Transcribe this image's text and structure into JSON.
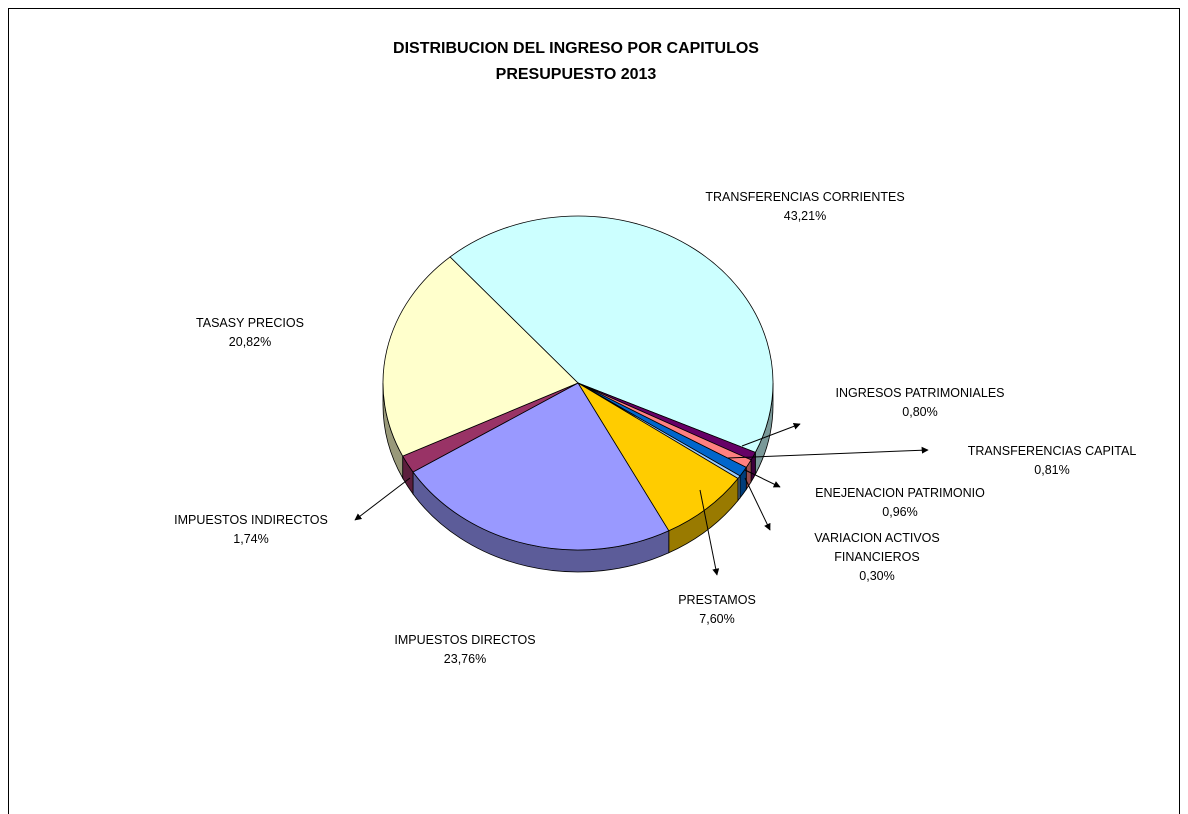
{
  "chart_data": {
    "type": "pie",
    "title": "DISTRIBUCION DEL INGRESO POR CAPITULOS",
    "subtitle": "PRESUPUESTO 2013",
    "categories": [
      "TRANSFERENCIAS CORRIENTES",
      "INGRESOS PATRIMONIALES",
      "TRANSFERENCIAS CAPITAL",
      "ENEJENACION PATRIMONIO",
      "VARIACION ACTIVOS FINANCIEROS",
      "PRESTAMOS",
      "IMPUESTOS DIRECTOS",
      "IMPUESTOS INDIRECTOS",
      "TASASY PRECIOS"
    ],
    "values": [
      43.21,
      0.8,
      0.81,
      0.96,
      0.3,
      7.6,
      23.76,
      1.74,
      20.82
    ],
    "value_labels": [
      "43,21%",
      "0,80%",
      "0,81%",
      "0,96%",
      "0,30%",
      "7,60%",
      "23,76%",
      "1,74%",
      "20,82%"
    ],
    "colors": [
      "#ccffff",
      "#660066",
      "#ff8080",
      "#0066cc",
      "#99ccff",
      "#ffcc00",
      "#9999ff",
      "#993366",
      "#ffffcc"
    ]
  }
}
